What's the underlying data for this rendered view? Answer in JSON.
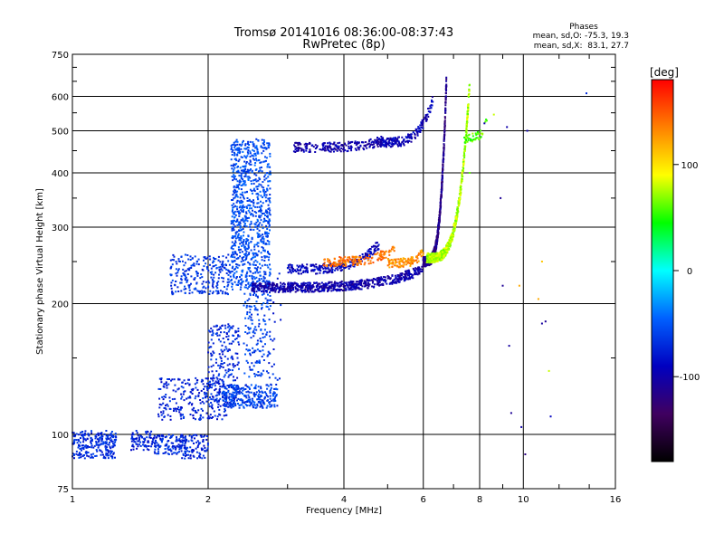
{
  "chart_data": {
    "type": "scatter",
    "title": "Tromsø 20141016 08:36:00-08:37:43",
    "subtitle": "RwPretec (8p)",
    "xlabel": "Frequency [MHz]",
    "ylabel": "Stationary phase Virtual Height [km]",
    "x_scale": "log",
    "y_scale": "log",
    "xlim": [
      1,
      16
    ],
    "ylim": [
      75,
      750
    ],
    "x_ticks": [
      1,
      2,
      4,
      6,
      8,
      10,
      16
    ],
    "x_tick_labels": [
      "1",
      "2",
      "4",
      "6",
      "8",
      "10",
      "16"
    ],
    "y_ticks": [
      75,
      100,
      200,
      300,
      400,
      500,
      600,
      750
    ],
    "y_tick_labels": [
      "75",
      "100",
      "200",
      "300",
      "400",
      "500",
      "600",
      "750"
    ],
    "grid": true,
    "stats": {
      "heading": "Phases",
      "line_o": "mean, sd,O: -75.3, 19.3",
      "line_x": "mean, sd,X:  83.1, 27.7"
    },
    "colorbar": {
      "label": "[deg]",
      "range": [
        -180,
        180
      ],
      "tick_values": [
        100,
        0,
        -100
      ],
      "tick_labels": [
        "100",
        "0",
        "-100"
      ],
      "colors": [
        "#ff0000",
        "#ff8000",
        "#ffff00",
        "#00ff00",
        "#00ffff",
        "#0060ff",
        "#0000c0",
        "#400060",
        "#000000"
      ]
    },
    "traces": [
      {
        "phase": -70,
        "count": 260,
        "f": [
          0.98,
          1.25
        ],
        "h": [
          88,
          102
        ]
      },
      {
        "phase": -75,
        "count": 70,
        "f": [
          1.35,
          1.5
        ],
        "h": [
          92,
          102
        ]
      },
      {
        "phase": -70,
        "count": 140,
        "f": [
          1.5,
          1.8
        ],
        "h": [
          90,
          100
        ]
      },
      {
        "phase": -72,
        "count": 90,
        "f": [
          1.75,
          2.0
        ],
        "h": [
          88,
          100
        ]
      },
      {
        "phase": -75,
        "count": 260,
        "f": [
          1.55,
          2.2
        ],
        "h": [
          108,
          135
        ]
      },
      {
        "phase": -70,
        "count": 220,
        "f": [
          2.0,
          2.35
        ],
        "h": [
          115,
          180
        ]
      },
      {
        "phase": -60,
        "count": 260,
        "f": [
          2.15,
          2.85
        ],
        "h": [
          115,
          130
        ]
      },
      {
        "phase": -65,
        "count": 250,
        "f": [
          1.65,
          2.25
        ],
        "h": [
          210,
          260
        ]
      },
      {
        "phase": -55,
        "count": 900,
        "f": [
          2.25,
          2.75
        ],
        "h": [
          215,
          480
        ]
      },
      {
        "phase": -60,
        "count": 160,
        "f": [
          2.4,
          2.75
        ],
        "h": [
          135,
          215
        ]
      },
      {
        "phase": -70,
        "count": 30,
        "f": [
          2.7,
          2.9
        ],
        "h": [
          130,
          235
        ]
      }
    ],
    "curves": [
      {
        "phase": -100,
        "count": 220,
        "f": [
          3.1,
          4.9
        ],
        "h": [
          458,
          475
        ]
      },
      {
        "phase": -95,
        "count": 200,
        "f": [
          4.8,
          6.3
        ],
        "h": [
          470,
          590
        ]
      },
      {
        "phase": -100,
        "count": 700,
        "f": [
          2.5,
          6.0
        ],
        "h": [
          218,
          240
        ]
      },
      {
        "phase": -90,
        "count": 260,
        "f": [
          3.0,
          4.8
        ],
        "h": [
          240,
          275
        ]
      },
      {
        "phase": -115,
        "count": 700,
        "f": [
          6.0,
          6.75
        ],
        "h": [
          250,
          650
        ]
      },
      {
        "phase": 140,
        "count": 160,
        "f": [
          3.6,
          5.2
        ],
        "h": [
          250,
          270
        ]
      },
      {
        "phase": 130,
        "count": 110,
        "f": [
          5.0,
          6.0
        ],
        "h": [
          248,
          262
        ]
      },
      {
        "phase": 75,
        "count": 650,
        "f": [
          6.1,
          7.6
        ],
        "h": [
          255,
          640
        ]
      },
      {
        "phase": 60,
        "count": 40,
        "f": [
          7.4,
          8.4
        ],
        "h": [
          480,
          560
        ]
      }
    ],
    "outliers": [
      {
        "phase": -100,
        "f": 8.2,
        "h": 520
      },
      {
        "phase": -110,
        "f": 8.9,
        "h": 350
      },
      {
        "phase": -110,
        "f": 9.0,
        "h": 220
      },
      {
        "phase": -105,
        "f": 9.3,
        "h": 160
      },
      {
        "phase": -110,
        "f": 9.4,
        "h": 112
      },
      {
        "phase": -100,
        "f": 9.9,
        "h": 104
      },
      {
        "phase": -120,
        "f": 10.1,
        "h": 90
      },
      {
        "phase": 120,
        "f": 9.8,
        "h": 220
      },
      {
        "phase": -100,
        "f": 10.2,
        "h": 500
      },
      {
        "phase": -100,
        "f": 9.2,
        "h": 510
      },
      {
        "phase": 110,
        "f": 11.0,
        "h": 250
      },
      {
        "phase": 120,
        "f": 10.8,
        "h": 205
      },
      {
        "phase": -110,
        "f": 11.2,
        "h": 182
      },
      {
        "phase": -105,
        "f": 11.0,
        "h": 180
      },
      {
        "phase": 80,
        "f": 11.4,
        "h": 140
      },
      {
        "phase": -90,
        "f": 11.5,
        "h": 110
      },
      {
        "phase": -70,
        "f": 13.8,
        "h": 610
      },
      {
        "phase": 80,
        "f": 8.6,
        "h": 545
      },
      {
        "phase": 60,
        "f": 7.6,
        "h": 400
      }
    ]
  }
}
